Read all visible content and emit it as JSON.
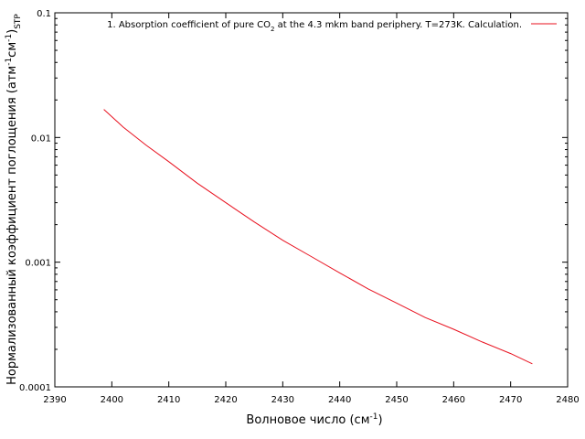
{
  "chart_data": {
    "type": "line",
    "xlabel": {
      "main": "Волновое число (см",
      "sup": "-1",
      "tail": ")"
    },
    "ylabel": {
      "part1": "Нормализованный коэффициент поглощения (атм",
      "sup1": "-1",
      "part2": "см",
      "sup2": "-1",
      "part3": ")",
      "sub": "STP"
    },
    "xlim": [
      2390,
      2480
    ],
    "ylim": [
      0.0001,
      0.1
    ],
    "y_scale": "log",
    "grid": false,
    "legend_position": "top-right",
    "x_ticks": [
      "2390",
      "2400",
      "2410",
      "2420",
      "2430",
      "2440",
      "2450",
      "2460",
      "2470",
      "2480"
    ],
    "y_ticks": [
      {
        "value": 0.0001,
        "label": "0.0001"
      },
      {
        "value": 0.001,
        "label": "0.001"
      },
      {
        "value": 0.01,
        "label": "0.01"
      },
      {
        "value": 0.1,
        "label": "0.1"
      }
    ],
    "series": [
      {
        "name": "1. Absorption coefficient of pure CO",
        "name_sub": "2",
        "name_tail": " at the 4.3 mkm band periphery. T=273K. Calculation.",
        "color": "#e8101e",
        "x": [
          2398.6,
          2402,
          2406,
          2410,
          2415,
          2420,
          2425,
          2430,
          2435,
          2440,
          2445,
          2450,
          2455,
          2460,
          2465,
          2470,
          2473.8
        ],
        "y": [
          0.0168,
          0.0121,
          0.0087,
          0.0064,
          0.0043,
          0.003,
          0.0021,
          0.0015,
          0.00111,
          0.00082,
          0.00061,
          0.00047,
          0.00036,
          0.00029,
          0.000229,
          0.000185,
          0.000153
        ]
      }
    ]
  }
}
